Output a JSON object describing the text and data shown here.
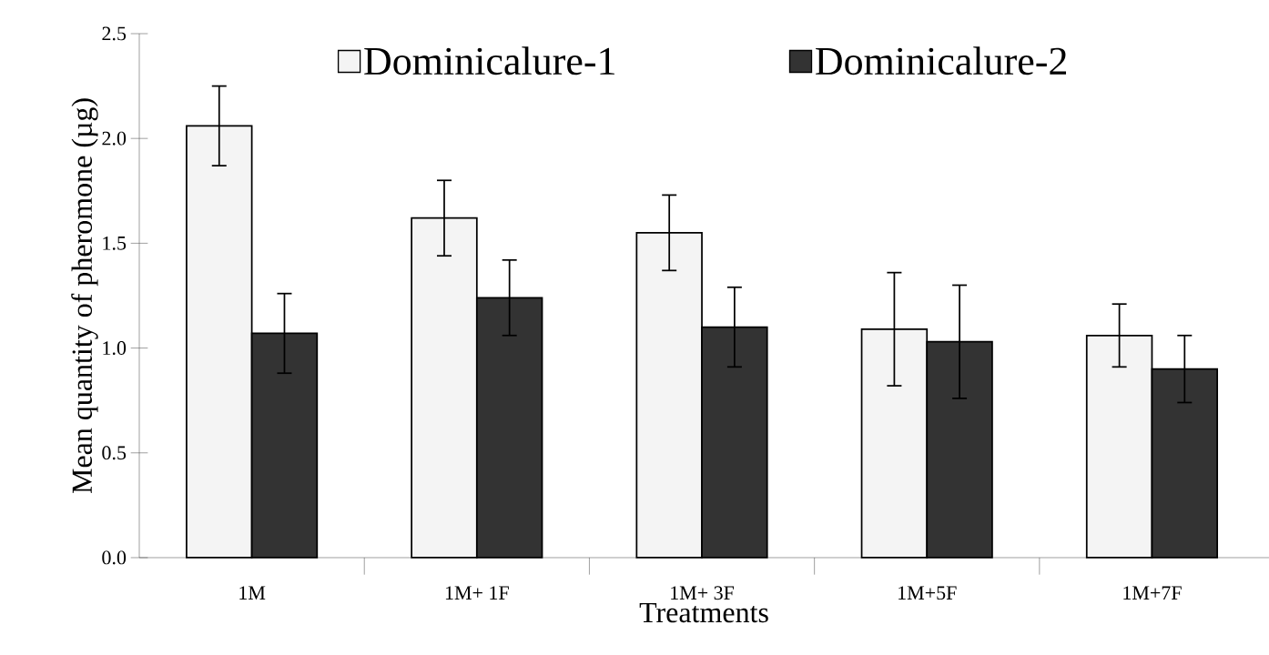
{
  "chart_data": {
    "type": "bar",
    "xlabel": "Treatments",
    "ylabel": "Mean quantity of pheromone (µg)",
    "categories": [
      "1M",
      "1M+ 1F",
      "1M+ 3F",
      "1M+5F",
      "1M+7F"
    ],
    "series": [
      {
        "name": "Dominicalure-1",
        "color": "#f4f4f4",
        "values": [
          2.06,
          1.62,
          1.55,
          1.09,
          1.06
        ],
        "errors": [
          0.19,
          0.18,
          0.18,
          0.27,
          0.15
        ]
      },
      {
        "name": "Dominicalure-2",
        "color": "#333333",
        "values": [
          1.07,
          1.24,
          1.1,
          1.03,
          0.9
        ],
        "errors": [
          0.19,
          0.18,
          0.19,
          0.27,
          0.16
        ]
      }
    ],
    "ylim": [
      0,
      2.5
    ],
    "yticks": [
      {
        "value": 0,
        "label": "0.0"
      },
      {
        "value": 0.5,
        "label": "0.5"
      },
      {
        "value": 1,
        "label": "1.0"
      },
      {
        "value": 1.5,
        "label": "1.5"
      },
      {
        "value": 2,
        "label": "2.0"
      },
      {
        "value": 2.5,
        "label": "2.5"
      }
    ],
    "legend": "top",
    "grid": false
  }
}
